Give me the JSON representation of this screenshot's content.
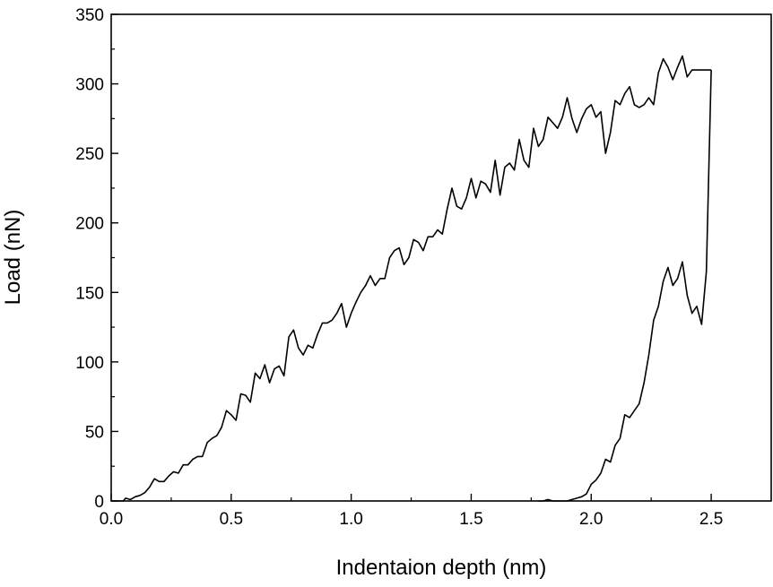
{
  "chart_data": {
    "type": "line",
    "title": "",
    "xlabel": "Indentaion depth (nm)",
    "ylabel": "Load (nN)",
    "xlim": [
      0.0,
      2.75
    ],
    "ylim": [
      0,
      350
    ],
    "x_ticks": [
      "0.0",
      "0.5",
      "1.0",
      "1.5",
      "2.0",
      "2.5"
    ],
    "y_ticks": [
      "0",
      "50",
      "100",
      "150",
      "200",
      "250",
      "300",
      "350"
    ],
    "grid": false,
    "legend": "none",
    "line_color": "#000000",
    "series": [
      {
        "x": [
          0.0,
          0.05,
          0.06,
          0.08,
          0.1,
          0.12,
          0.14,
          0.16,
          0.18,
          0.2,
          0.22,
          0.24,
          0.26,
          0.28,
          0.3,
          0.32,
          0.34,
          0.36,
          0.38,
          0.4,
          0.42,
          0.44,
          0.46,
          0.48,
          0.5,
          0.52,
          0.54,
          0.56,
          0.58,
          0.6,
          0.62,
          0.64,
          0.66,
          0.68,
          0.7,
          0.72,
          0.74,
          0.76,
          0.78,
          0.8,
          0.82,
          0.84,
          0.86,
          0.88,
          0.9,
          0.92,
          0.94,
          0.96,
          0.98,
          1.0,
          1.02,
          1.04,
          1.06,
          1.08,
          1.1,
          1.12,
          1.14,
          1.16,
          1.18,
          1.2,
          1.22,
          1.24,
          1.26,
          1.28,
          1.3,
          1.32,
          1.34,
          1.36,
          1.38,
          1.4,
          1.42,
          1.44,
          1.46,
          1.48,
          1.5,
          1.52,
          1.54,
          1.56,
          1.58,
          1.6,
          1.62,
          1.64,
          1.66,
          1.68,
          1.7,
          1.72,
          1.74,
          1.76,
          1.78,
          1.8,
          1.82,
          1.84,
          1.86,
          1.88,
          1.9,
          1.92,
          1.94,
          1.96,
          1.98,
          2.0,
          2.02,
          2.04,
          2.06,
          2.08,
          2.1,
          2.12,
          2.14,
          2.16,
          2.18,
          2.2,
          2.22,
          2.24,
          2.26,
          2.28,
          2.3,
          2.32,
          2.34,
          2.36,
          2.38,
          2.4,
          2.42,
          2.44,
          2.46,
          2.48,
          2.5
        ],
        "y": [
          0,
          0,
          2,
          1,
          3,
          4,
          6,
          10,
          16,
          14,
          14,
          18,
          21,
          20,
          26,
          26,
          30,
          32,
          32,
          42,
          45,
          47,
          53,
          65,
          62,
          58,
          77,
          76,
          71,
          92,
          88,
          98,
          85,
          95,
          97,
          90,
          118,
          123,
          110,
          105,
          112,
          110,
          120,
          128,
          128,
          130,
          135,
          142,
          125,
          135,
          143,
          150,
          155,
          162,
          155,
          160,
          160,
          175,
          180,
          182,
          170,
          175,
          188,
          186,
          180,
          190,
          190,
          195,
          192,
          210,
          225,
          212,
          210,
          218,
          232,
          218,
          230,
          228,
          222,
          245,
          220,
          240,
          243,
          238,
          260,
          245,
          240,
          268,
          255,
          260,
          276,
          272,
          268,
          276,
          290,
          275,
          265,
          275,
          282,
          285,
          276,
          280,
          250,
          265,
          288,
          285,
          293,
          298,
          285,
          283,
          285,
          290,
          285,
          308,
          318,
          312,
          303,
          312,
          320,
          305,
          310,
          310,
          310,
          310,
          310
        ]
      },
      {
        "x": [
          2.5,
          2.48,
          2.46,
          2.44,
          2.42,
          2.4,
          2.38,
          2.36,
          2.34,
          2.32,
          2.3,
          2.28,
          2.26,
          2.24,
          2.22,
          2.2,
          2.18,
          2.16,
          2.14,
          2.12,
          2.1,
          2.08,
          2.06,
          2.04,
          2.02,
          2.0,
          1.98,
          1.96,
          1.94,
          1.92,
          1.9,
          1.88,
          1.86,
          1.84,
          1.82,
          1.8,
          1.78
        ],
        "y": [
          310,
          165,
          127,
          140,
          135,
          148,
          172,
          160,
          155,
          168,
          158,
          140,
          130,
          105,
          85,
          70,
          65,
          60,
          62,
          45,
          40,
          28,
          30,
          20,
          15,
          12,
          5,
          3,
          2,
          1,
          0,
          0,
          0,
          0,
          1,
          0,
          0
        ]
      }
    ]
  }
}
